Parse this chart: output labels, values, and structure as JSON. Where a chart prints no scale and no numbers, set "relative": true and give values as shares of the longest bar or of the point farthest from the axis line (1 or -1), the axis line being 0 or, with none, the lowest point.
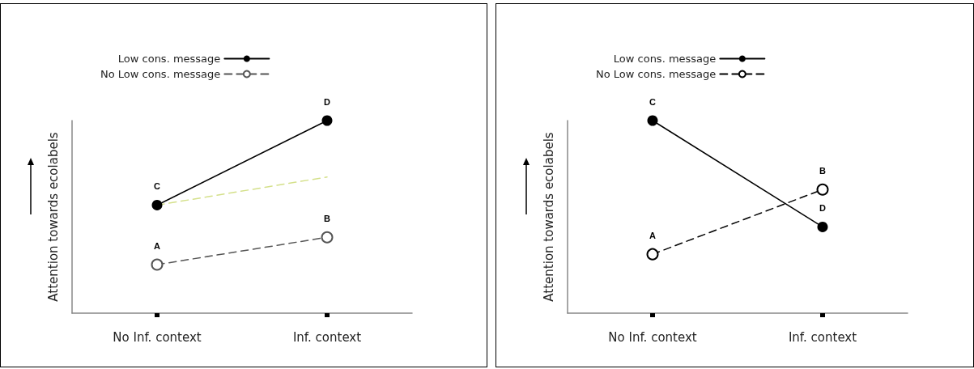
{
  "chart_data": [
    {
      "type": "line",
      "relative": true,
      "ylabel": "Attention towards ecolabels",
      "categories": [
        "No Inf. context",
        "Inf. context"
      ],
      "legend": "top left",
      "marker": "circle",
      "grid": false,
      "series": [
        {
          "name": "Low cons. message",
          "color": "#000000",
          "values": [
            0.561,
            1
          ],
          "line_style": "solid"
        },
        {
          "name": "No Low cons. message",
          "color": "#555555",
          "values": [
            0.252,
            0.394
          ],
          "line_style": "dashed"
        },
        {
          "color": "#d4e08a",
          "values": [
            0.561,
            0.707
          ],
          "line_style": "dashed",
          "marker": "none"
        }
      ],
      "annotations": [
        {
          "text": "C",
          "x": "No Inf. context",
          "y": 0.561
        },
        {
          "text": "D",
          "x": "Inf. context",
          "y": 1
        },
        {
          "text": "A",
          "x": "No Inf. context",
          "y": 0.252
        },
        {
          "text": "B",
          "x": "Inf. context",
          "y": 0.394
        }
      ]
    },
    {
      "type": "line",
      "relative": true,
      "ylabel": "Attention towards ecolabels",
      "categories": [
        "No Inf. context",
        "Inf. context"
      ],
      "legend": "top left",
      "marker": "circle",
      "grid": false,
      "series": [
        {
          "name": "Low cons. message",
          "color": "#000000",
          "values": [
            1,
            0.448
          ],
          "line_style": "solid"
        },
        {
          "name": "No Low cons. message",
          "color": "#000000",
          "values": [
            0.306,
            0.642
          ],
          "line_style": "dashed"
        }
      ],
      "annotations": [
        {
          "text": "C",
          "x": "No Inf. context",
          "y": 1
        },
        {
          "text": "D",
          "x": "Inf. context",
          "y": 0.448
        },
        {
          "text": "A",
          "x": "No Inf. context",
          "y": 0.306
        },
        {
          "text": "B",
          "x": "Inf. context",
          "y": 0.642
        }
      ]
    }
  ]
}
